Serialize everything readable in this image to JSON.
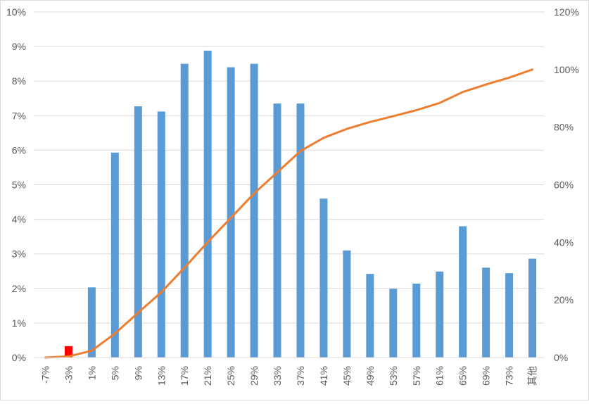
{
  "chart_data": {
    "type": "bar",
    "categories": [
      "-7%",
      "-3%",
      "1%",
      "5%",
      "9%",
      "13%",
      "17%",
      "21%",
      "25%",
      "29%",
      "33%",
      "37%",
      "41%",
      "45%",
      "49%",
      "53%",
      "57%",
      "61%",
      "65%",
      "69%",
      "73%",
      "其他"
    ],
    "series": [
      {
        "type": "bar",
        "axis": "left",
        "values": [
          0.0,
          0.33,
          2.03,
          5.93,
          7.27,
          7.12,
          8.5,
          8.88,
          8.4,
          8.5,
          7.35,
          7.35,
          4.6,
          3.1,
          2.42,
          1.99,
          2.14,
          2.49,
          3.8,
          2.6,
          2.44,
          2.86
        ],
        "colors": [
          "#5b9bd5",
          "#ff0000",
          "#5b9bd5",
          "#5b9bd5",
          "#5b9bd5",
          "#5b9bd5",
          "#5b9bd5",
          "#5b9bd5",
          "#5b9bd5",
          "#5b9bd5",
          "#5b9bd5",
          "#5b9bd5",
          "#5b9bd5",
          "#5b9bd5",
          "#5b9bd5",
          "#5b9bd5",
          "#5b9bd5",
          "#5b9bd5",
          "#5b9bd5",
          "#5b9bd5",
          "#5b9bd5",
          "#5b9bd5"
        ]
      },
      {
        "type": "line",
        "axis": "right",
        "color": "#ed7d31",
        "values": [
          0.0,
          0.4,
          2.4,
          8.3,
          15.6,
          22.7,
          31.2,
          40.1,
          48.5,
          57.0,
          64.3,
          71.7,
          76.3,
          79.4,
          81.8,
          83.8,
          85.9,
          88.4,
          92.2,
          94.8,
          97.2,
          100.0
        ]
      }
    ],
    "ylim_left": [
      0,
      10
    ],
    "yticks_left": [
      "0%",
      "1%",
      "2%",
      "3%",
      "4%",
      "5%",
      "6%",
      "7%",
      "8%",
      "9%",
      "10%"
    ],
    "ylim_right": [
      0,
      120
    ],
    "yticks_right": [
      "0%",
      "20%",
      "40%",
      "60%",
      "80%",
      "100%",
      "120%"
    ],
    "grid": true,
    "legend": "none",
    "colors": {
      "bar": "#5b9bd5",
      "bar_highlight": "#ff0000",
      "line": "#ed7d31",
      "grid": "#d9d9d9",
      "text": "#595959"
    }
  }
}
